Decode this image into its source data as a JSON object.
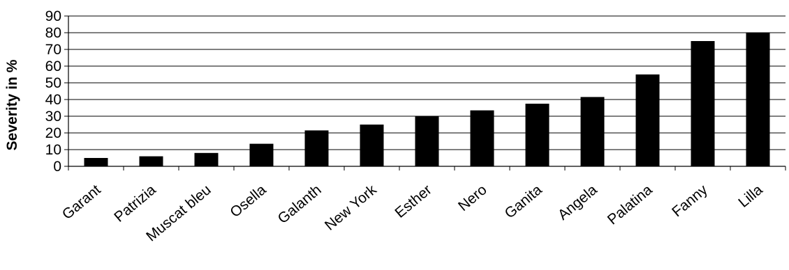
{
  "chart_data": {
    "type": "bar",
    "title": "",
    "xlabel": "",
    "ylabel": "Severity in %",
    "ylim": [
      0,
      90
    ],
    "yticks": [
      0,
      10,
      20,
      30,
      40,
      50,
      60,
      70,
      80,
      90
    ],
    "grid": true,
    "legend": "none",
    "bar_color": "#000000",
    "categories": [
      "Garant",
      "Patrizia",
      "Muscat bleu",
      "Osella",
      "Galanth",
      "New York",
      "Esther",
      "Nero",
      "Ganita",
      "Angela",
      "Palatina",
      "Fanny",
      "Lilla"
    ],
    "values": [
      5,
      6,
      8,
      13.5,
      21.5,
      25,
      30,
      33.5,
      37.5,
      41.5,
      55,
      75,
      80
    ]
  }
}
